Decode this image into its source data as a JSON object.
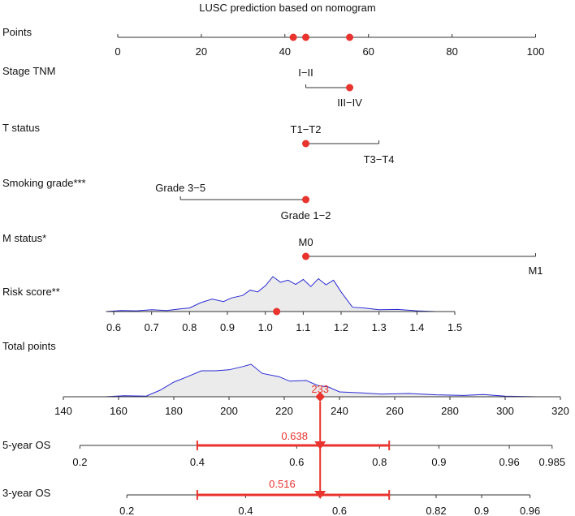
{
  "chart_data": {
    "type": "nomogram",
    "title": "LUSC prediction based on nomogram",
    "colors": {
      "axis": "#333333",
      "text": "#111111",
      "highlight": "#e8332e",
      "density_line": "#2b2bd6",
      "density_fill": "#ebebeb"
    },
    "points_axis": {
      "label": "Points",
      "range": [
        0,
        100
      ],
      "ticks": [
        0,
        20,
        40,
        60,
        80,
        100
      ],
      "tick_labels": [
        "0",
        "20",
        "40",
        "60",
        "80",
        "100"
      ],
      "selected_points": [
        42,
        45,
        55.5
      ]
    },
    "variables": [
      {
        "label": "Stage TNM",
        "points_range": [
          45,
          55.5
        ],
        "levels": [
          {
            "label": "I−II",
            "points": 45
          },
          {
            "label": "III−IV",
            "points": 55.5
          }
        ],
        "selected": "III−IV"
      },
      {
        "label": "T status",
        "points_range": [
          45,
          62.5
        ],
        "levels": [
          {
            "label": "T1−T2",
            "points": 45
          },
          {
            "label": "T3−T4",
            "points": 62.5
          }
        ],
        "selected": "T1−T2"
      },
      {
        "label": "Smoking grade***",
        "points_range": [
          15,
          45
        ],
        "levels": [
          {
            "label": "Grade 3−5",
            "points": 15
          },
          {
            "label": "Grade 1−2",
            "points": 45
          }
        ],
        "selected": "Grade 1−2"
      },
      {
        "label": "M status*",
        "points_range": [
          45,
          100
        ],
        "levels": [
          {
            "label": "M0",
            "points": 45
          },
          {
            "label": "M1",
            "points": 100
          }
        ],
        "selected": "M0"
      }
    ],
    "risk_score": {
      "label": "Risk score**",
      "ticks": [
        0.6,
        0.7,
        0.8,
        0.9,
        1.0,
        1.1,
        1.2,
        1.3,
        1.4,
        1.5
      ],
      "tick_labels": [
        "0.6",
        "0.7",
        "0.8",
        "0.9",
        "1.0",
        "1.1",
        "1.2",
        "1.3",
        "1.4",
        "1.5"
      ],
      "selected_value": 1.03,
      "density_x": [
        0.58,
        0.62,
        0.66,
        0.7,
        0.74,
        0.78,
        0.8,
        0.83,
        0.86,
        0.89,
        0.91,
        0.94,
        0.96,
        0.98,
        1.0,
        1.02,
        1.04,
        1.06,
        1.08,
        1.1,
        1.12,
        1.14,
        1.16,
        1.18,
        1.2,
        1.23,
        1.26,
        1.3,
        1.35,
        1.4,
        1.45
      ],
      "density_y": [
        0.0,
        0.03,
        0.02,
        0.05,
        0.03,
        0.08,
        0.1,
        0.25,
        0.35,
        0.28,
        0.38,
        0.45,
        0.6,
        0.55,
        0.72,
        0.98,
        0.82,
        0.88,
        0.76,
        0.9,
        0.7,
        0.92,
        0.75,
        0.88,
        0.55,
        0.12,
        0.1,
        0.05,
        0.06,
        0.02,
        0.0
      ]
    },
    "total_points": {
      "label": "Total points",
      "ticks": [
        140,
        160,
        180,
        200,
        220,
        240,
        260,
        280,
        300,
        320
      ],
      "tick_labels": [
        "140",
        "160",
        "180",
        "200",
        "220",
        "240",
        "260",
        "280",
        "300",
        "320"
      ],
      "selected_value": 233,
      "selected_label": "233",
      "density_x": [
        155,
        162,
        170,
        175,
        180,
        185,
        190,
        195,
        200,
        205,
        208,
        212,
        218,
        222,
        228,
        232,
        236,
        240,
        248,
        255,
        265,
        275,
        285,
        292,
        300,
        312
      ],
      "density_y": [
        0.0,
        0.03,
        0.02,
        0.2,
        0.45,
        0.62,
        0.8,
        0.8,
        0.83,
        0.93,
        1.0,
        0.72,
        0.62,
        0.48,
        0.5,
        0.35,
        0.3,
        0.15,
        0.12,
        0.08,
        0.1,
        0.06,
        0.04,
        0.07,
        0.02,
        0.0
      ]
    },
    "outcomes": [
      {
        "label": "5-year OS",
        "ticks": [
          0.2,
          0.4,
          0.6,
          0.8,
          0.9,
          0.96,
          0.985
        ],
        "tick_labels": [
          "0.2",
          "0.4",
          "0.6",
          "0.8",
          "0.9",
          "0.96",
          "0.985"
        ],
        "total_points_at_ticks": [
          146,
          188.5,
          224.5,
          254.5,
          276,
          301.5,
          317
        ],
        "selected_value": 0.638,
        "selected_label": "0.638",
        "ci_total_points": [
          188.5,
          258
        ]
      },
      {
        "label": "3-year OS",
        "ticks": [
          0.2,
          0.4,
          0.6,
          0.82,
          0.9,
          0.96
        ],
        "tick_labels": [
          "0.2",
          "0.4",
          "0.6",
          "0.82",
          "0.9",
          "0.96"
        ],
        "total_points_at_ticks": [
          163,
          206,
          240,
          275,
          291.5,
          309
        ],
        "selected_value": 0.516,
        "selected_label": "0.516",
        "ci_total_points": [
          188.5,
          258
        ]
      }
    ]
  }
}
